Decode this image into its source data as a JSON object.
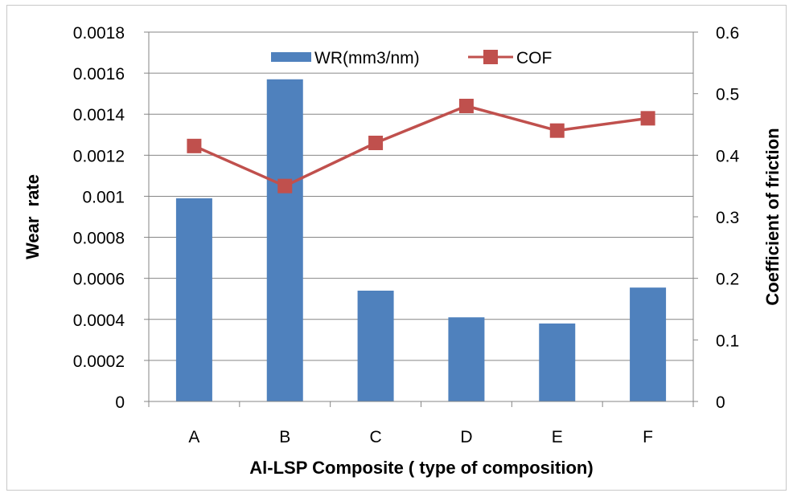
{
  "chart_data": {
    "type": "bar",
    "categories": [
      "A",
      "B",
      "C",
      "D",
      "E",
      "F"
    ],
    "series": [
      {
        "name": "WR(mm3/nm)",
        "type": "bar",
        "axis": "left",
        "color": "#4f81bd",
        "values": [
          0.00099,
          0.00157,
          0.00054,
          0.00041,
          0.00038,
          0.000555
        ]
      },
      {
        "name": "COF",
        "type": "line",
        "axis": "right",
        "color": "#c0504d",
        "values": [
          0.415,
          0.35,
          0.42,
          0.48,
          0.44,
          0.46
        ]
      }
    ],
    "xlabel": "Al-LSP Composite ( type of composition)",
    "ylabel": "Wear  rate",
    "y2label": "Coefficient of friction",
    "ylim": [
      0,
      0.0018
    ],
    "y2lim": [
      0,
      0.6
    ],
    "yticks": [
      "0",
      "0.0002",
      "0.0004",
      "0.0006",
      "0.0008",
      "0.001",
      "0.0012",
      "0.0014",
      "0.0016",
      "0.0018"
    ],
    "y2ticks": [
      "0",
      "0.1",
      "0.2",
      "0.3",
      "0.4",
      "0.5",
      "0.6"
    ],
    "grid": true,
    "legend": "top-center"
  }
}
